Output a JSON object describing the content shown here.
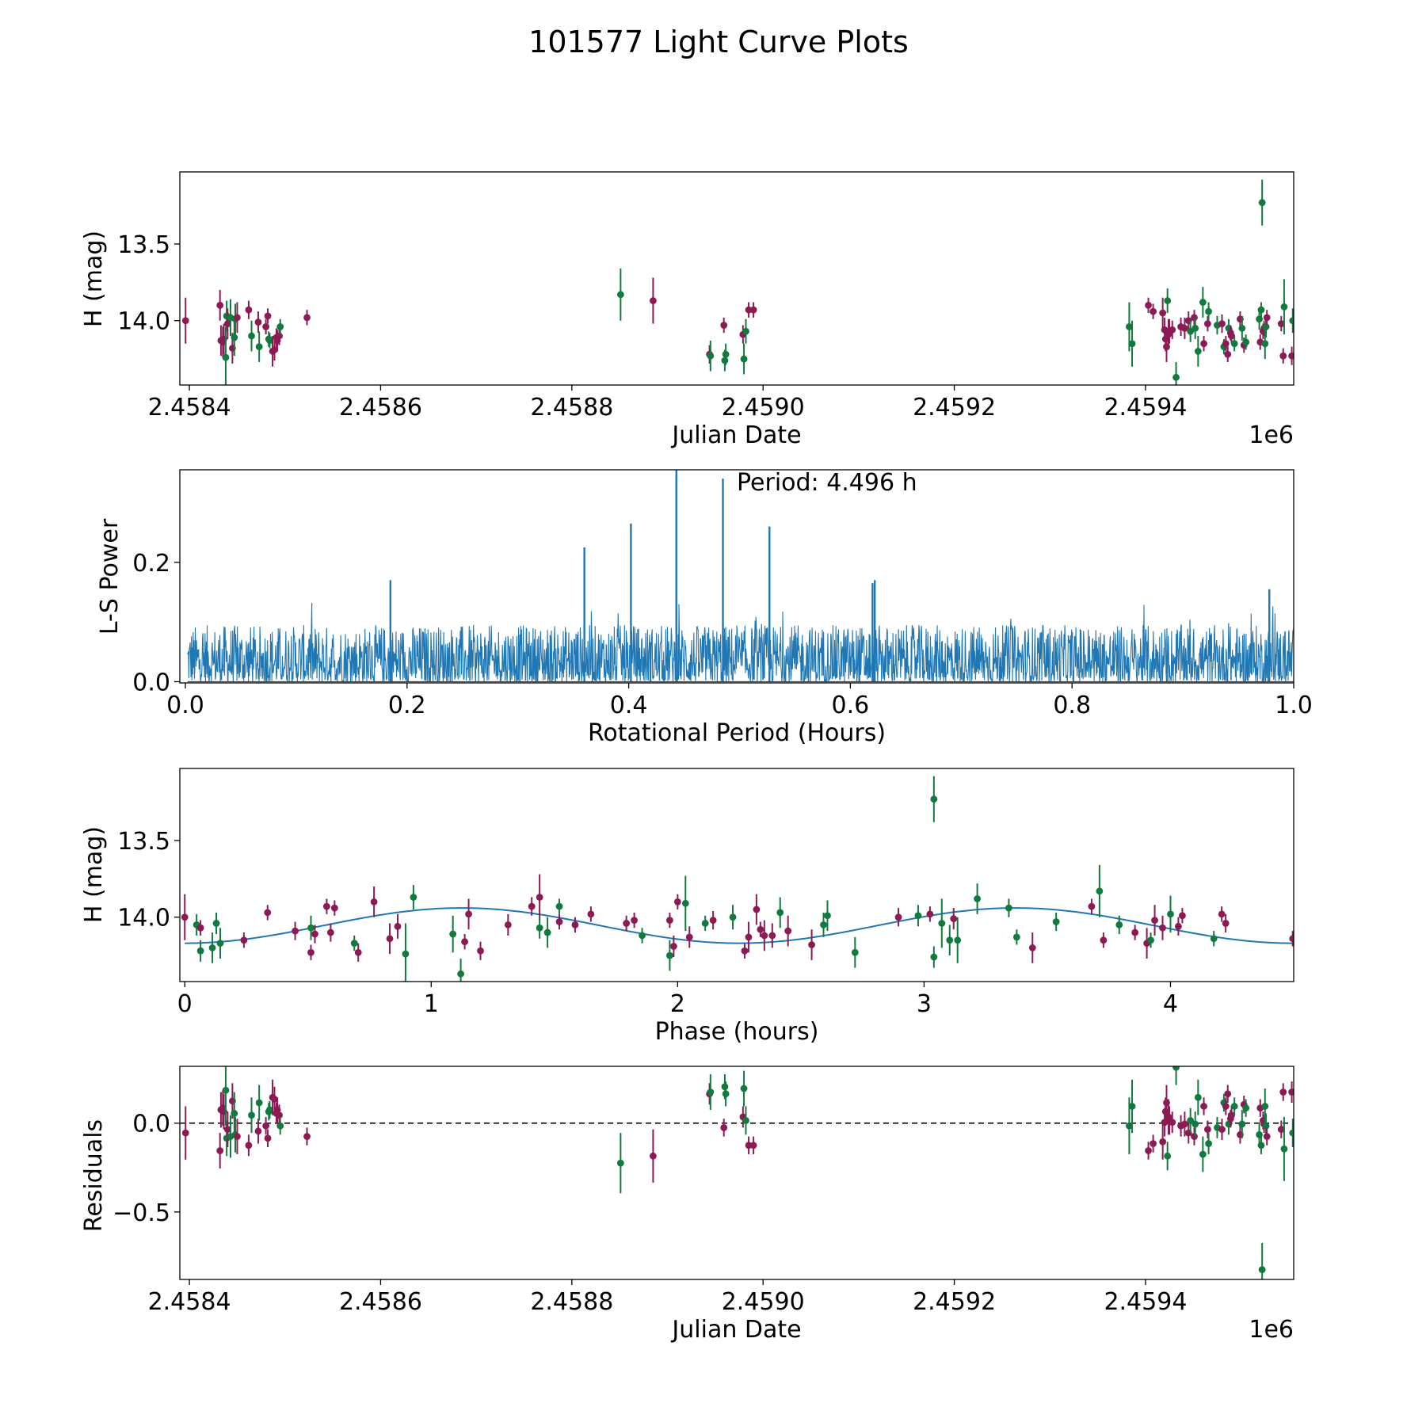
{
  "figure": {
    "title": "101577 Light Curve Plots"
  },
  "colors": {
    "green": "#117a3e",
    "purple": "#8b1a55",
    "blue": "#1f77b4",
    "axis": "#000000"
  },
  "chart_data": [
    {
      "id": "lightcurve",
      "type": "scatter",
      "xlabel": "Julian Date",
      "ylabel": "H (mag)",
      "offset_label": "1e6",
      "xlim": [
        2.45839,
        2.459555
      ],
      "ylim": [
        14.42,
        13.03
      ],
      "y_inverted": true,
      "xticks": [
        2.4584,
        2.4586,
        2.4588,
        2.459,
        2.4592,
        2.4594
      ],
      "xtick_labels": [
        "2.4584",
        "2.4586",
        "2.4588",
        "2.4590",
        "2.4592",
        "2.4594"
      ],
      "yticks": [
        14.0,
        13.5
      ],
      "ytick_labels": [
        "14.0",
        "13.5"
      ]
    },
    {
      "id": "periodogram",
      "type": "line",
      "xlabel": "Rotational Period (Hours)",
      "ylabel": "L-S Power",
      "xlim": [
        -0.005,
        1.0
      ],
      "ylim": [
        -0.002,
        0.355
      ],
      "xticks": [
        0.0,
        0.2,
        0.4,
        0.6,
        0.8,
        1.0
      ],
      "xtick_labels": [
        "0.0",
        "0.2",
        "0.4",
        "0.6",
        "0.8",
        "1.0"
      ],
      "yticks": [
        0.0,
        0.2
      ],
      "ytick_labels": [
        "0.0",
        "0.2"
      ],
      "annotation": "Period: 4.496 h",
      "peaks": [
        {
          "x": 0.36,
          "y": 0.225
        },
        {
          "x": 0.402,
          "y": 0.265
        },
        {
          "x": 0.443,
          "y": 0.355
        },
        {
          "x": 0.485,
          "y": 0.34
        },
        {
          "x": 0.527,
          "y": 0.26
        },
        {
          "x": 0.185,
          "y": 0.17
        },
        {
          "x": 0.622,
          "y": 0.17
        },
        {
          "x": 0.62,
          "y": 0.165
        },
        {
          "x": 0.978,
          "y": 0.155
        }
      ]
    },
    {
      "id": "phased",
      "type": "scatter",
      "xlabel": "Phase (hours)",
      "ylabel": "H (mag)",
      "xlim": [
        -0.02,
        4.5
      ],
      "ylim": [
        14.42,
        13.03
      ],
      "y_inverted": true,
      "xticks": [
        0,
        1,
        2,
        3,
        4
      ],
      "xtick_labels": [
        "0",
        "1",
        "2",
        "3",
        "4"
      ],
      "yticks": [
        14.0,
        13.5
      ],
      "ytick_labels": [
        "14.0",
        "13.5"
      ],
      "model": {
        "mean": 14.055,
        "amplitude": 0.115,
        "period_hours": 4.496,
        "peak_phase": 0.0
      }
    },
    {
      "id": "residuals",
      "type": "scatter",
      "xlabel": "Julian Date",
      "ylabel": "Residuals",
      "offset_label": "1e6",
      "xlim": [
        2.45839,
        2.459555
      ],
      "ylim": [
        -0.88,
        0.32
      ],
      "xticks": [
        2.4584,
        2.4586,
        2.4588,
        2.459,
        2.4592,
        2.4594
      ],
      "xtick_labels": [
        "2.4584",
        "2.4586",
        "2.4588",
        "2.4590",
        "2.4592",
        "2.4594"
      ],
      "yticks": [
        0.0,
        -0.5
      ],
      "ytick_labels": [
        "0.0",
        "−0.5"
      ],
      "zero_line": 0.0
    }
  ],
  "observations": [
    {
      "jd": 2.458396,
      "mag": 14.0,
      "err": 0.15,
      "c": "p"
    },
    {
      "jd": 2.458432,
      "mag": 13.9,
      "err": 0.1,
      "c": "p"
    },
    {
      "jd": 2.458433,
      "mag": 14.13,
      "err": 0.1,
      "c": "p"
    },
    {
      "jd": 2.458435,
      "mag": 14.14,
      "err": 0.1,
      "c": "p"
    },
    {
      "jd": 2.458436,
      "mag": 14.12,
      "err": 0.1,
      "c": "p"
    },
    {
      "jd": 2.458438,
      "mag": 14.24,
      "err": 0.2,
      "c": "g"
    },
    {
      "jd": 2.458439,
      "mag": 13.97,
      "err": 0.1,
      "c": "g"
    },
    {
      "jd": 2.45844,
      "mag": 14.02,
      "err": 0.1,
      "c": "p"
    },
    {
      "jd": 2.458443,
      "mag": 13.98,
      "err": 0.12,
      "c": "g"
    },
    {
      "jd": 2.458445,
      "mag": 14.18,
      "err": 0.1,
      "c": "p"
    },
    {
      "jd": 2.458447,
      "mag": 14.11,
      "err": 0.12,
      "c": "g"
    },
    {
      "jd": 2.458448,
      "mag": 13.99,
      "err": 0.1,
      "c": "g"
    },
    {
      "jd": 2.45845,
      "mag": 13.98,
      "err": 0.1,
      "c": "p"
    },
    {
      "jd": 2.458462,
      "mag": 13.93,
      "err": 0.06,
      "c": "p"
    },
    {
      "jd": 2.458465,
      "mag": 14.1,
      "err": 0.1,
      "c": "g"
    },
    {
      "jd": 2.458472,
      "mag": 14.01,
      "err": 0.07,
      "c": "p"
    },
    {
      "jd": 2.458473,
      "mag": 14.17,
      "err": 0.1,
      "c": "g"
    },
    {
      "jd": 2.45848,
      "mag": 14.04,
      "err": 0.05,
      "c": "p"
    },
    {
      "jd": 2.458482,
      "mag": 13.97,
      "err": 0.05,
      "c": "p"
    },
    {
      "jd": 2.458483,
      "mag": 14.12,
      "err": 0.05,
      "c": "g"
    },
    {
      "jd": 2.458484,
      "mag": 14.13,
      "err": 0.05,
      "c": "g"
    },
    {
      "jd": 2.458487,
      "mag": 14.2,
      "err": 0.1,
      "c": "p"
    },
    {
      "jd": 2.458489,
      "mag": 14.19,
      "err": 0.07,
      "c": "p"
    },
    {
      "jd": 2.458491,
      "mag": 14.11,
      "err": 0.06,
      "c": "p"
    },
    {
      "jd": 2.458492,
      "mag": 14.13,
      "err": 0.07,
      "c": "p"
    },
    {
      "jd": 2.458494,
      "mag": 14.1,
      "err": 0.06,
      "c": "p"
    },
    {
      "jd": 2.458495,
      "mag": 14.04,
      "err": 0.05,
      "c": "g"
    },
    {
      "jd": 2.458523,
      "mag": 13.98,
      "err": 0.05,
      "c": "p"
    },
    {
      "jd": 2.458851,
      "mag": 13.83,
      "err": 0.17,
      "c": "g"
    },
    {
      "jd": 2.458885,
      "mag": 13.87,
      "err": 0.15,
      "c": "p"
    },
    {
      "jd": 2.458944,
      "mag": 14.22,
      "err": 0.06,
      "c": "p"
    },
    {
      "jd": 2.458945,
      "mag": 14.23,
      "err": 0.1,
      "c": "g"
    },
    {
      "jd": 2.458959,
      "mag": 14.03,
      "err": 0.05,
      "c": "p"
    },
    {
      "jd": 2.45896,
      "mag": 14.26,
      "err": 0.07,
      "c": "g"
    },
    {
      "jd": 2.458961,
      "mag": 14.22,
      "err": 0.07,
      "c": "g"
    },
    {
      "jd": 2.458979,
      "mag": 14.09,
      "err": 0.06,
      "c": "p"
    },
    {
      "jd": 2.45898,
      "mag": 14.25,
      "err": 0.1,
      "c": "g"
    },
    {
      "jd": 2.458982,
      "mag": 14.07,
      "err": 0.08,
      "c": "g"
    },
    {
      "jd": 2.458985,
      "mag": 13.93,
      "err": 0.05,
      "c": "p"
    },
    {
      "jd": 2.45899,
      "mag": 13.93,
      "err": 0.05,
      "c": "p"
    },
    {
      "jd": 2.459383,
      "mag": 14.04,
      "err": 0.16,
      "c": "g"
    },
    {
      "jd": 2.459386,
      "mag": 14.15,
      "err": 0.15,
      "c": "g"
    },
    {
      "jd": 2.459403,
      "mag": 13.9,
      "err": 0.05,
      "c": "p"
    },
    {
      "jd": 2.459408,
      "mag": 13.94,
      "err": 0.05,
      "c": "p"
    },
    {
      "jd": 2.459418,
      "mag": 13.95,
      "err": 0.1,
      "c": "p"
    },
    {
      "jd": 2.45942,
      "mag": 14.06,
      "err": 0.08,
      "c": "p"
    },
    {
      "jd": 2.459421,
      "mag": 14.12,
      "err": 0.08,
      "c": "p"
    },
    {
      "jd": 2.459422,
      "mag": 14.17,
      "err": 0.1,
      "c": "p"
    },
    {
      "jd": 2.459423,
      "mag": 13.87,
      "err": 0.08,
      "c": "g"
    },
    {
      "jd": 2.459424,
      "mag": 14.09,
      "err": 0.1,
      "c": "p"
    },
    {
      "jd": 2.459425,
      "mag": 14.07,
      "err": 0.08,
      "c": "p"
    },
    {
      "jd": 2.459428,
      "mag": 14.06,
      "err": 0.06,
      "c": "p"
    },
    {
      "jd": 2.459432,
      "mag": 14.37,
      "err": 0.1,
      "c": "g"
    },
    {
      "jd": 2.459437,
      "mag": 14.04,
      "err": 0.06,
      "c": "p"
    },
    {
      "jd": 2.459441,
      "mag": 14.05,
      "err": 0.07,
      "c": "p"
    },
    {
      "jd": 2.459445,
      "mag": 14.0,
      "err": 0.06,
      "c": "p"
    },
    {
      "jd": 2.459447,
      "mag": 14.07,
      "err": 0.07,
      "c": "g"
    },
    {
      "jd": 2.459451,
      "mag": 13.98,
      "err": 0.05,
      "c": "p"
    },
    {
      "jd": 2.459452,
      "mag": 14.05,
      "err": 0.07,
      "c": "g"
    },
    {
      "jd": 2.459455,
      "mag": 14.2,
      "err": 0.1,
      "c": "g"
    },
    {
      "jd": 2.45946,
      "mag": 13.88,
      "err": 0.1,
      "c": "g"
    },
    {
      "jd": 2.459461,
      "mag": 14.15,
      "err": 0.05,
      "c": "p"
    },
    {
      "jd": 2.459465,
      "mag": 14.02,
      "err": 0.05,
      "c": "p"
    },
    {
      "jd": 2.459466,
      "mag": 13.94,
      "err": 0.06,
      "c": "g"
    },
    {
      "jd": 2.459475,
      "mag": 14.03,
      "err": 0.06,
      "c": "g"
    },
    {
      "jd": 2.45948,
      "mag": 14.02,
      "err": 0.06,
      "c": "p"
    },
    {
      "jd": 2.459482,
      "mag": 14.17,
      "err": 0.05,
      "c": "g"
    },
    {
      "jd": 2.459484,
      "mag": 14.15,
      "err": 0.05,
      "c": "p"
    },
    {
      "jd": 2.459486,
      "mag": 14.22,
      "err": 0.05,
      "c": "p"
    },
    {
      "jd": 2.459487,
      "mag": 14.05,
      "err": 0.06,
      "c": "g"
    },
    {
      "jd": 2.459489,
      "mag": 14.08,
      "err": 0.05,
      "c": "p"
    },
    {
      "jd": 2.45949,
      "mag": 14.1,
      "err": 0.05,
      "c": "p"
    },
    {
      "jd": 2.459493,
      "mag": 14.15,
      "err": 0.05,
      "c": "g"
    },
    {
      "jd": 2.459499,
      "mag": 13.99,
      "err": 0.05,
      "c": "p"
    },
    {
      "jd": 2.459501,
      "mag": 14.05,
      "err": 0.08,
      "c": "g"
    },
    {
      "jd": 2.459503,
      "mag": 14.16,
      "err": 0.05,
      "c": "p"
    },
    {
      "jd": 2.459505,
      "mag": 14.14,
      "err": 0.05,
      "c": "g"
    },
    {
      "jd": 2.459519,
      "mag": 13.99,
      "err": 0.07,
      "c": "g"
    },
    {
      "jd": 2.45952,
      "mag": 14.14,
      "err": 0.05,
      "c": "p"
    },
    {
      "jd": 2.459521,
      "mag": 13.93,
      "err": 0.05,
      "c": "g"
    },
    {
      "jd": 2.459522,
      "mag": 13.23,
      "err": 0.15,
      "c": "g"
    },
    {
      "jd": 2.459523,
      "mag": 14.07,
      "err": 0.05,
      "c": "p"
    },
    {
      "jd": 2.459524,
      "mag": 14.05,
      "err": 0.05,
      "c": "p"
    },
    {
      "jd": 2.459525,
      "mag": 14.15,
      "err": 0.1,
      "c": "g"
    },
    {
      "jd": 2.459526,
      "mag": 14.04,
      "err": 0.07,
      "c": "g"
    },
    {
      "jd": 2.459527,
      "mag": 13.98,
      "err": 0.05,
      "c": "p"
    },
    {
      "jd": 2.459542,
      "mag": 14.02,
      "err": 0.05,
      "c": "p"
    },
    {
      "jd": 2.459544,
      "mag": 14.23,
      "err": 0.05,
      "c": "p"
    },
    {
      "jd": 2.459545,
      "mag": 13.91,
      "err": 0.18,
      "c": "g"
    },
    {
      "jd": 2.459553,
      "mag": 14.23,
      "err": 0.06,
      "c": "p"
    },
    {
      "jd": 2.459554,
      "mag": 14.0,
      "err": 0.08,
      "c": "g"
    }
  ]
}
